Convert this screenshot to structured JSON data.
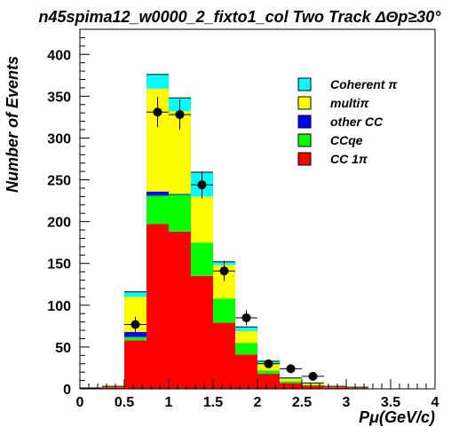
{
  "chart_data": {
    "type": "bar",
    "stacked": true,
    "title": "n45spima12_w0000_2_fixto1_col Two Track ΔΘp≥30°",
    "xlabel": "Pμ(GeV/c)",
    "ylabel": "Number of Events",
    "xlim": [
      0,
      4
    ],
    "ylim": [
      0,
      430
    ],
    "x_ticks": [
      "0",
      "0.5",
      "1",
      "1.5",
      "2",
      "2.5",
      "3",
      "3.5",
      "4"
    ],
    "y_ticks": [
      "0",
      "50",
      "100",
      "150",
      "200",
      "250",
      "300",
      "350",
      "400"
    ],
    "bin_edges": [
      0.0,
      0.25,
      0.5,
      0.75,
      1.0,
      1.25,
      1.5,
      1.75,
      2.0,
      2.25,
      2.5,
      2.75,
      3.0,
      3.25,
      3.5,
      3.75,
      4.0
    ],
    "series": [
      {
        "name": "CC 1π",
        "color": "#ff0000",
        "values": [
          1,
          2,
          58,
          197,
          188,
          135,
          79,
          41,
          18,
          7,
          4,
          2,
          1,
          0,
          0,
          0
        ]
      },
      {
        "name": "CCqe",
        "color": "#00ff00",
        "values": [
          0,
          0,
          4,
          34,
          44,
          40,
          29,
          14,
          4,
          2,
          1,
          0,
          0,
          0,
          0,
          0
        ]
      },
      {
        "name": "other CC",
        "color": "#0000ff",
        "values": [
          0,
          0,
          6,
          5,
          1,
          0,
          0,
          0,
          0,
          0,
          0,
          0,
          0,
          0,
          0,
          0
        ]
      },
      {
        "name": "multiπ",
        "color": "#ffff00",
        "values": [
          0,
          1,
          42,
          123,
          99,
          55,
          40,
          14,
          8,
          3,
          2,
          1,
          1,
          0,
          0,
          0
        ]
      },
      {
        "name": "Coherent π",
        "color": "#00ffff",
        "values": [
          0,
          0,
          6,
          17,
          16,
          29,
          4,
          5,
          3,
          1,
          0,
          0,
          0,
          0,
          0,
          0
        ]
      }
    ],
    "data_points": {
      "x": [
        0.625,
        0.875,
        1.125,
        1.375,
        1.625,
        1.875,
        2.125,
        2.375,
        2.625
      ],
      "y": [
        77,
        331,
        328,
        244,
        141,
        85,
        30,
        24,
        15
      ],
      "yerr": [
        9,
        18,
        18,
        16,
        12,
        9,
        5,
        5,
        4
      ],
      "xerr": 0.125
    },
    "legend": {
      "position": "top-right",
      "entries": [
        {
          "label": "Coherent π",
          "color": "#00ffff"
        },
        {
          "label": "multiπ",
          "color": "#ffff00"
        },
        {
          "label": "other CC",
          "color": "#0000ff"
        },
        {
          "label": "CCqe",
          "color": "#00ff00"
        },
        {
          "label": "CC 1π",
          "color": "#ff0000"
        }
      ]
    },
    "grid": false
  }
}
